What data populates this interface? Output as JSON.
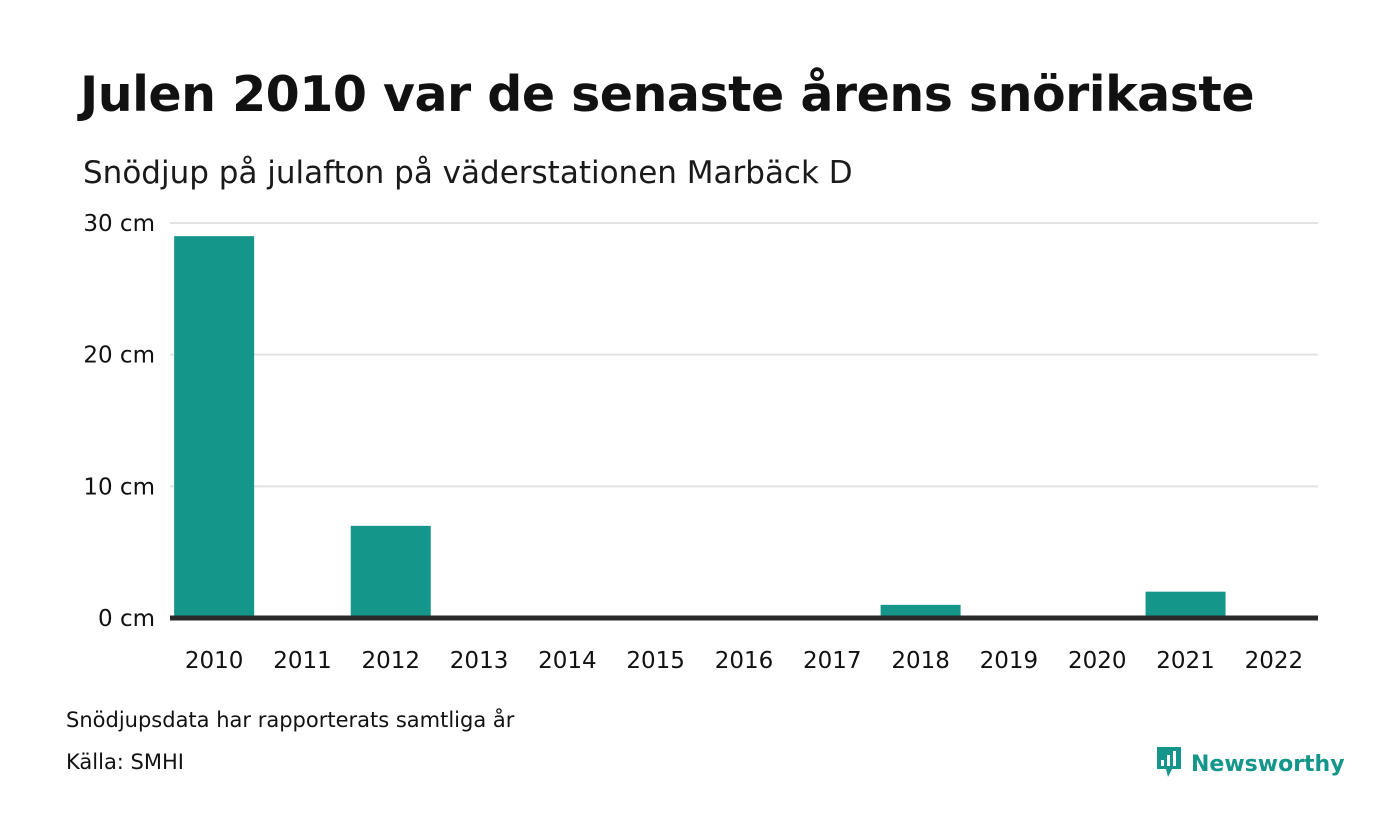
{
  "title": "Julen 2010 var de senaste årens snörikaste",
  "subtitle": "Snödjup på julafton på väderstationen Marbäck D",
  "footer": {
    "note": "Snödjupsdata har rapporterats samtliga år",
    "source": "Källa: SMHI",
    "brand": "Newsworthy",
    "brand_icon": "newsworthy-logo-icon"
  },
  "colors": {
    "bar": "#14968a",
    "grid": "#e3e3e3",
    "baseline": "#2a2a2a",
    "brand": "#14968a"
  },
  "chart_data": {
    "type": "bar",
    "categories": [
      "2010",
      "2011",
      "2012",
      "2013",
      "2014",
      "2015",
      "2016",
      "2017",
      "2018",
      "2019",
      "2020",
      "2021",
      "2022"
    ],
    "values": [
      29,
      0,
      7,
      0,
      0,
      0,
      0,
      0,
      1,
      0,
      0,
      2,
      0
    ],
    "unit": "cm",
    "yticks": [
      "0 cm",
      "10 cm",
      "20 cm",
      "30 cm"
    ],
    "ytick_values": [
      0,
      10,
      20,
      30
    ],
    "ylim": [
      0,
      30
    ],
    "grid": true
  }
}
